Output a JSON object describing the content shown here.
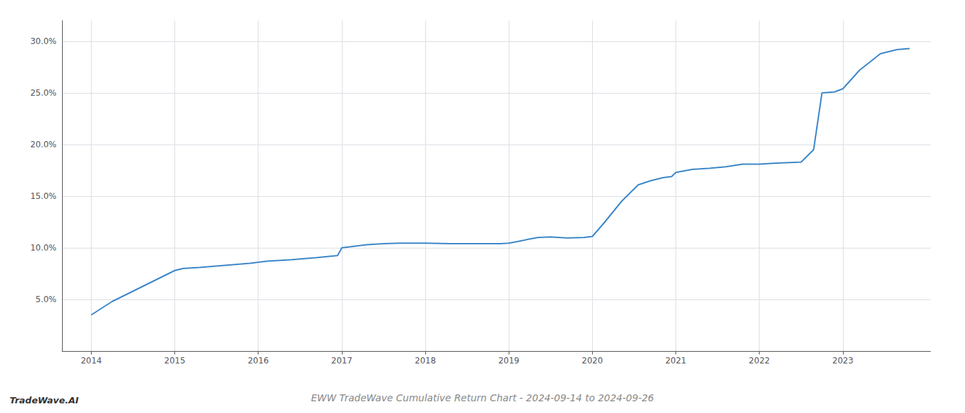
{
  "chart_data": {
    "type": "line",
    "title": "EWW TradeWave Cumulative Return Chart - 2024-09-14 to 2024-09-26",
    "annotations": [
      "TradeWave.AI"
    ],
    "color": "#3a86c8",
    "grid": true,
    "x": [
      2014.0,
      2014.25,
      2014.6,
      2014.85,
      2015.0,
      2015.1,
      2015.3,
      2015.6,
      2015.9,
      2016.1,
      2016.4,
      2016.7,
      2016.95,
      2017.0,
      2017.3,
      2017.5,
      2017.7,
      2017.9,
      2018.0,
      2018.3,
      2018.6,
      2018.9,
      2019.0,
      2019.1,
      2019.25,
      2019.35,
      2019.5,
      2019.7,
      2019.9,
      2020.0,
      2020.15,
      2020.35,
      2020.55,
      2020.7,
      2020.85,
      2020.95,
      2021.0,
      2021.2,
      2021.4,
      2021.6,
      2021.8,
      2022.0,
      2022.2,
      2022.5,
      2022.65,
      2022.75,
      2022.9,
      2023.0,
      2023.2,
      2023.45,
      2023.65,
      2023.8
    ],
    "values": [
      3.5,
      4.8,
      6.2,
      7.2,
      7.8,
      8.0,
      8.1,
      8.3,
      8.5,
      8.7,
      8.85,
      9.05,
      9.25,
      10.0,
      10.3,
      10.4,
      10.45,
      10.45,
      10.45,
      10.4,
      10.4,
      10.4,
      10.45,
      10.6,
      10.85,
      11.0,
      11.05,
      10.95,
      11.0,
      11.1,
      12.5,
      14.5,
      16.1,
      16.5,
      16.8,
      16.9,
      17.3,
      17.6,
      17.7,
      17.85,
      18.1,
      18.1,
      18.2,
      18.3,
      19.5,
      25.0,
      25.1,
      25.4,
      27.2,
      28.8,
      29.2,
      29.3
    ],
    "xlim": [
      2013.65,
      2024.05
    ],
    "xticks": [
      2014,
      2015,
      2016,
      2017,
      2018,
      2019,
      2020,
      2021,
      2022,
      2023
    ],
    "ylim": [
      0,
      32
    ],
    "yticks": [
      {
        "value": 5.0,
        "label": "5.0%"
      },
      {
        "value": 10.0,
        "label": "10.0%"
      },
      {
        "value": 15.0,
        "label": "15.0%"
      },
      {
        "value": 20.0,
        "label": "20.0%"
      },
      {
        "value": 25.0,
        "label": "25.0%"
      },
      {
        "value": 30.0,
        "label": "30.0%"
      }
    ]
  }
}
